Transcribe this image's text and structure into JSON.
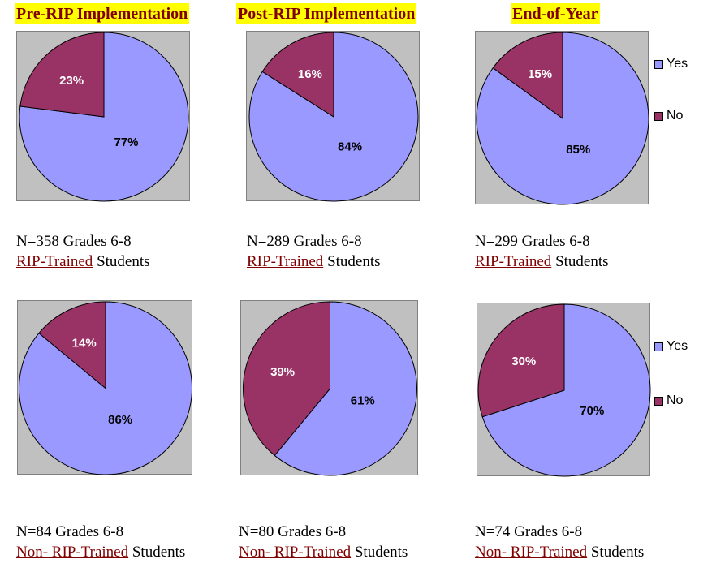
{
  "titles": [
    "Pre-RIP Implementation",
    "Post-RIP Implementation",
    "End-of-Year"
  ],
  "colors": {
    "yes": "#9999ff",
    "no": "#993366"
  },
  "legend": {
    "yes_label": "Yes",
    "no_label": "No"
  },
  "chart_data": [
    {
      "type": "pie",
      "categories": [
        "Yes",
        "No"
      ],
      "values": [
        77,
        23
      ],
      "labels": [
        "77%",
        "23%"
      ]
    },
    {
      "type": "pie",
      "categories": [
        "Yes",
        "No"
      ],
      "values": [
        84,
        16
      ],
      "labels": [
        "84%",
        "16%"
      ]
    },
    {
      "type": "pie",
      "categories": [
        "Yes",
        "No"
      ],
      "values": [
        85,
        15
      ],
      "labels": [
        "85%",
        "15%"
      ]
    },
    {
      "type": "pie",
      "categories": [
        "Yes",
        "No"
      ],
      "values": [
        86,
        14
      ],
      "labels": [
        "86%",
        "14%"
      ]
    },
    {
      "type": "pie",
      "categories": [
        "Yes",
        "No"
      ],
      "values": [
        61,
        39
      ],
      "labels": [
        "61%",
        "39%"
      ]
    },
    {
      "type": "pie",
      "categories": [
        "Yes",
        "No"
      ],
      "values": [
        70,
        30
      ],
      "labels": [
        "70%",
        "30%"
      ]
    }
  ],
  "captions": [
    {
      "line1": "N=358 Grades 6-8",
      "underlined": "RIP-Trained",
      "rest": " Students"
    },
    {
      "line1": "N=289 Grades 6-8",
      "underlined": "RIP-Trained",
      "rest": " Students"
    },
    {
      "line1": "N=299 Grades 6-8",
      "underlined": "RIP-Trained",
      "rest": " Students"
    },
    {
      "line1": "N=84 Grades 6-8",
      "underlined": "Non- RIP-Trained",
      "rest": " Students"
    },
    {
      "line1": "N=80 Grades 6-8",
      "underlined": "Non- RIP-Trained",
      "rest": " Students"
    },
    {
      "line1": "N=74 Grades 6-8",
      "underlined": "Non- RIP-Trained",
      "rest": " Students"
    }
  ]
}
